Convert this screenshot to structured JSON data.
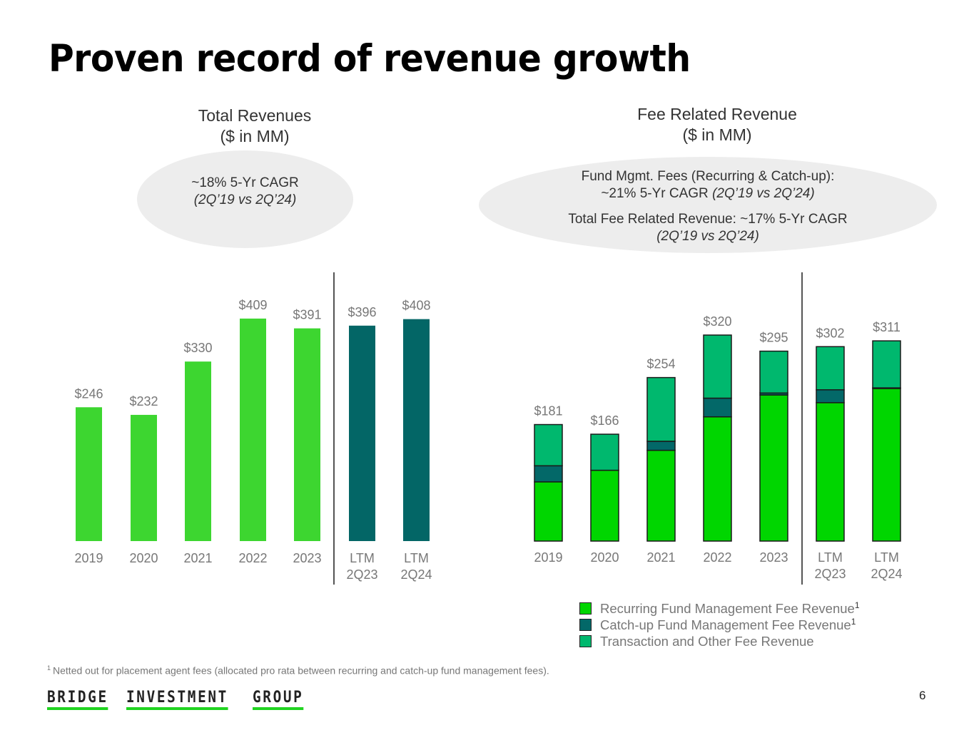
{
  "page": {
    "title": "Proven record of revenue growth",
    "page_number": "6",
    "footnote_marker": "1",
    "footnote": "Netted out for placement agent fees (allocated pro rata between recurring and catch-up fund management fees).",
    "logo_words": [
      "BRIDGE",
      "INVESTMENT",
      "GROUP"
    ]
  },
  "left_panel": {
    "title_line1": "Total Revenues",
    "title_line2": "($ in MM)",
    "cagr_line1": "~18% 5-Yr CAGR",
    "cagr_line2": "(2Q’19 vs 2Q’24)"
  },
  "right_panel": {
    "title_line1": "Fee Related Revenue",
    "title_line2": "($ in MM)",
    "cagr1_line1": "Fund Mgmt. Fees (Recurring & Catch-up):",
    "cagr1_line2_plain": "~21% 5-Yr CAGR ",
    "cagr1_line2_italic": "(2Q’19 vs 2Q’24)",
    "cagr2_line1": "Total Fee Related Revenue: ~17% 5-Yr CAGR",
    "cagr2_line2": "(2Q’19 vs 2Q’24)"
  },
  "legend": [
    {
      "label": "Recurring Fund Management Fee Revenue",
      "sup": "1",
      "color": "#00d600"
    },
    {
      "label": "Catch-up Fund Management Fee Revenue",
      "sup": "1",
      "color": "#036868"
    },
    {
      "label": "Transaction and Other Fee Revenue",
      "sup": "",
      "color": "#00b86e"
    }
  ],
  "chart_data": [
    {
      "type": "bar",
      "title": "Total Revenues ($ in MM)",
      "categories": [
        "2019",
        "2020",
        "2021",
        "2022",
        "2023",
        "LTM\n2Q23",
        "LTM\n2Q24"
      ],
      "values": [
        246,
        232,
        330,
        409,
        391,
        396,
        408
      ],
      "data_labels": [
        "$246",
        "$232",
        "$330",
        "$409",
        "$391",
        "$396",
        "$408"
      ],
      "colors": [
        "#3dd630",
        "#3dd630",
        "#3dd630",
        "#3dd630",
        "#3dd630",
        "#036666",
        "#036666"
      ],
      "divider_after_index": 4,
      "xlabel": "",
      "ylabel": "",
      "ylim": [
        0,
        420
      ],
      "grid": false
    },
    {
      "type": "bar",
      "stacked": true,
      "title": "Fee Related Revenue ($ in MM)",
      "categories": [
        "2019",
        "2020",
        "2021",
        "2022",
        "2023",
        "LTM\n2Q23",
        "LTM\n2Q24"
      ],
      "series": [
        {
          "name": "Recurring Fund Management Fee Revenue",
          "values": [
            92,
            110,
            141,
            193,
            227,
            215,
            237
          ],
          "color": "#00d600"
        },
        {
          "name": "Catch-up Fund Management Fee Revenue",
          "values": [
            25,
            0,
            14,
            29,
            3,
            20,
            1
          ],
          "color": "#036868"
        },
        {
          "name": "Transaction and Other Fee Revenue",
          "values": [
            64,
            56,
            99,
            98,
            65,
            67,
            73
          ],
          "color": "#00b86e"
        }
      ],
      "totals": [
        181,
        166,
        254,
        320,
        295,
        302,
        311
      ],
      "data_labels": [
        "$181",
        "$166",
        "$254",
        "$320",
        "$295",
        "$302",
        "$311"
      ],
      "divider_after_index": 4,
      "legend_position": "bottom",
      "xlabel": "",
      "ylabel": "",
      "ylim": [
        0,
        330
      ],
      "grid": false
    }
  ]
}
